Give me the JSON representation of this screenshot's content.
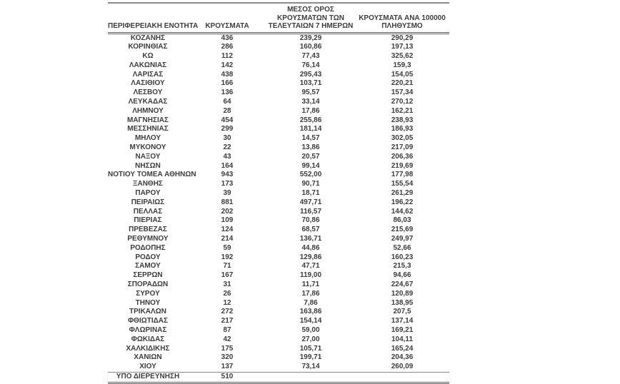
{
  "chart_data": {
    "type": "table",
    "columns": [
      "ΠΕΡΙΦΕΡΕΙΑΚΗ ΕΝΟΤΗΤΑ",
      "ΚΡΟΥΣΜΑΤΑ",
      "ΜΕΣΟΣ ΟΡΟΣ ΚΡΟΥΣΜΑΤΩΝ ΤΩΝ ΤΕΛΕΥΤΑΙΩΝ 7 ΗΜΕΡΩΝ",
      "ΚΡΟΥΣΜΑΤΑ ΑΝΑ 100000 ΠΛΗΘΥΣΜΟ"
    ],
    "header_display_lines": [
      [
        "ΠΕΡΙΦΕΡΕΙΑΚΗ ΕΝΟΤΗΤΑ"
      ],
      [
        "ΚΡΟΥΣΜΑΤΑ"
      ],
      [
        "ΜΕΣΟΣ ΟΡΟΣ",
        "ΚΡΟΥΣΜΑΤΩΝ ΤΩΝ",
        "ΤΕΛΕΥΤΑΙΩΝ 7 ΗΜΕΡΩΝ"
      ],
      [
        "ΚΡΟΥΣΜΑΤΑ ΑΝΑ 100000",
        "ΠΛΗΘΥΣΜΟ"
      ]
    ],
    "rows": [
      {
        "region": "ΚΟΖΑΝΗΣ",
        "cases": 436,
        "avg_7day": "239,29",
        "per_100k": "290,29"
      },
      {
        "region": "ΚΟΡΙΝΘΙΑΣ",
        "cases": 286,
        "avg_7day": "160,86",
        "per_100k": "197,13"
      },
      {
        "region": "ΚΩ",
        "cases": 112,
        "avg_7day": "77,43",
        "per_100k": "325,62"
      },
      {
        "region": "ΛΑΚΩΝΙΑΣ",
        "cases": 142,
        "avg_7day": "76,14",
        "per_100k": "159,3"
      },
      {
        "region": "ΛΑΡΙΣΑΣ",
        "cases": 438,
        "avg_7day": "295,43",
        "per_100k": "154,05"
      },
      {
        "region": "ΛΑΣΙΘΙΟΥ",
        "cases": 166,
        "avg_7day": "103,71",
        "per_100k": "220,21"
      },
      {
        "region": "ΛΕΣΒΟΥ",
        "cases": 136,
        "avg_7day": "95,57",
        "per_100k": "157,34"
      },
      {
        "region": "ΛΕΥΚΑΔΑΣ",
        "cases": 64,
        "avg_7day": "33,14",
        "per_100k": "270,12"
      },
      {
        "region": "ΛΗΜΝΟΥ",
        "cases": 28,
        "avg_7day": "17,86",
        "per_100k": "162,21"
      },
      {
        "region": "ΜΑΓΝΗΣΙΑΣ",
        "cases": 454,
        "avg_7day": "255,86",
        "per_100k": "238,93"
      },
      {
        "region": "ΜΕΣΣΗΝΙΑΣ",
        "cases": 299,
        "avg_7day": "181,14",
        "per_100k": "186,93"
      },
      {
        "region": "ΜΗΛΟΥ",
        "cases": 30,
        "avg_7day": "14,57",
        "per_100k": "302,05"
      },
      {
        "region": "ΜΥΚΟΝΟΥ",
        "cases": 22,
        "avg_7day": "13,86",
        "per_100k": "217,09"
      },
      {
        "region": "ΝΑΞΟΥ",
        "cases": 43,
        "avg_7day": "20,57",
        "per_100k": "206,36"
      },
      {
        "region": "ΝΗΣΩΝ",
        "cases": 164,
        "avg_7day": "99,14",
        "per_100k": "219,69"
      },
      {
        "region": "ΝΟΤΙΟΥ ΤΟΜΕΑ ΑΘΗΝΩΝ",
        "cases": 943,
        "avg_7day": "552,00",
        "per_100k": "177,98"
      },
      {
        "region": "ΞΑΝΘΗΣ",
        "cases": 173,
        "avg_7day": "90,71",
        "per_100k": "155,54"
      },
      {
        "region": "ΠΑΡΟΥ",
        "cases": 39,
        "avg_7day": "18,71",
        "per_100k": "261,29"
      },
      {
        "region": "ΠΕΙΡΑΙΩΣ",
        "cases": 881,
        "avg_7day": "497,71",
        "per_100k": "196,22"
      },
      {
        "region": "ΠΕΛΛΑΣ",
        "cases": 202,
        "avg_7day": "116,57",
        "per_100k": "144,62"
      },
      {
        "region": "ΠΙΕΡΙΑΣ",
        "cases": 109,
        "avg_7day": "70,86",
        "per_100k": "86,03"
      },
      {
        "region": "ΠΡΕΒΕΖΑΣ",
        "cases": 124,
        "avg_7day": "68,57",
        "per_100k": "215,69"
      },
      {
        "region": "ΡΕΘΥΜΝΟΥ",
        "cases": 214,
        "avg_7day": "136,71",
        "per_100k": "249,97"
      },
      {
        "region": "ΡΟΔΟΠΗΣ",
        "cases": 59,
        "avg_7day": "44,86",
        "per_100k": "52,66"
      },
      {
        "region": "ΡΟΔΟΥ",
        "cases": 192,
        "avg_7day": "129,86",
        "per_100k": "160,23"
      },
      {
        "region": "ΣΑΜΟΥ",
        "cases": 71,
        "avg_7day": "47,71",
        "per_100k": "215,3"
      },
      {
        "region": "ΣΕΡΡΩΝ",
        "cases": 167,
        "avg_7day": "119,00",
        "per_100k": "94,66"
      },
      {
        "region": "ΣΠΟΡΑΔΩΝ",
        "cases": 31,
        "avg_7day": "11,71",
        "per_100k": "224,67"
      },
      {
        "region": "ΣΥΡΟΥ",
        "cases": 26,
        "avg_7day": "17,86",
        "per_100k": "120,89"
      },
      {
        "region": "ΤΗΝΟΥ",
        "cases": 12,
        "avg_7day": "7,86",
        "per_100k": "138,95"
      },
      {
        "region": "ΤΡΙΚΑΛΩΝ",
        "cases": 272,
        "avg_7day": "163,86",
        "per_100k": "207,5"
      },
      {
        "region": "ΦΘΙΩΤΙΔΑΣ",
        "cases": 217,
        "avg_7day": "154,14",
        "per_100k": "137,14"
      },
      {
        "region": "ΦΛΩΡΙΝΑΣ",
        "cases": 87,
        "avg_7day": "59,00",
        "per_100k": "169,21"
      },
      {
        "region": "ΦΩΚΙΔΑΣ",
        "cases": 42,
        "avg_7day": "27,00",
        "per_100k": "104,11"
      },
      {
        "region": "ΧΑΛΚΙΔΙΚΗΣ",
        "cases": 175,
        "avg_7day": "105,71",
        "per_100k": "165,24"
      },
      {
        "region": "ΧΑΝΙΩΝ",
        "cases": 320,
        "avg_7day": "199,71",
        "per_100k": "204,36"
      },
      {
        "region": "ΧΙΟΥ",
        "cases": 137,
        "avg_7day": "73,14",
        "per_100k": "260,09"
      }
    ],
    "pending_row": {
      "region": "ΥΠΟ ΔΙΕΡΕΥΝΗΣΗ",
      "cases": 510,
      "avg_7day": "",
      "per_100k": ""
    },
    "layout_hints": {
      "grid": "horizontal rules only: top rule, double rule under header, thin rule above pending row, double rule at bottom",
      "text_color": "#3c3c3e",
      "rule_color": "#8a8a8a"
    }
  }
}
